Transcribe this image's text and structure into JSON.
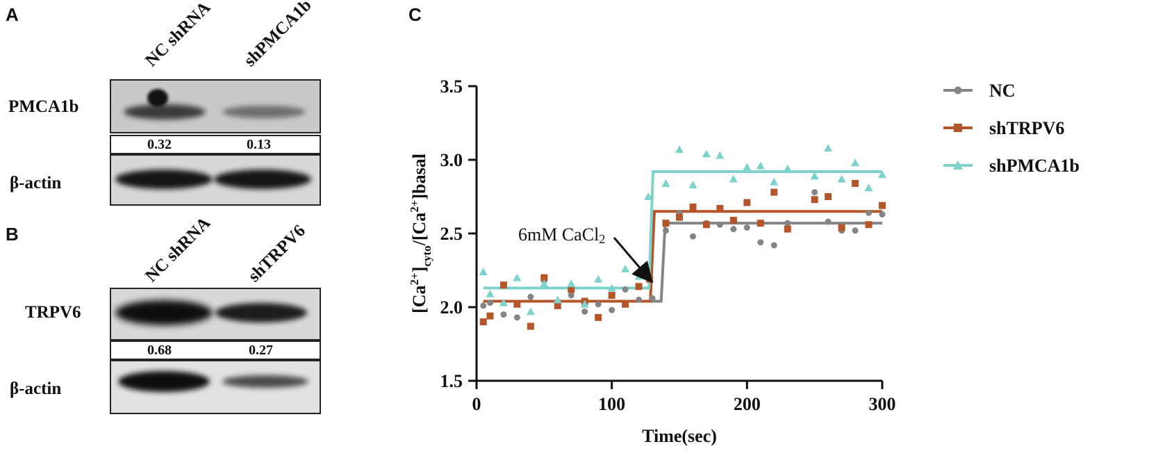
{
  "panels": {
    "a": "A",
    "b": "B",
    "c": "C"
  },
  "blotA": {
    "lanes": [
      "NC shRNA",
      "shPMCA1b"
    ],
    "target_label": "PMCA1b",
    "quant": [
      "0.32",
      "0.13"
    ],
    "loading_label": "β-actin"
  },
  "blotB": {
    "lanes": [
      "NC shRNA",
      "shTRPV6"
    ],
    "target_label": "TRPV6",
    "quant": [
      "0.68",
      "0.27"
    ],
    "loading_label": "β-actin"
  },
  "chart_data": {
    "type": "scatter",
    "title": "",
    "xlabel": "Time(sec)",
    "ylabel": {
      "parts": [
        "[Ca",
        "2+",
        "]",
        "cyto",
        "/[Ca",
        "2+",
        "]basal"
      ]
    },
    "xlim": [
      0,
      300
    ],
    "ylim": [
      1.5,
      3.5
    ],
    "xticks": [
      0,
      100,
      200,
      300
    ],
    "yticks": [
      1.5,
      2.0,
      2.5,
      3.0,
      3.5
    ],
    "xtick_labels": [
      "0",
      "100",
      "200",
      "300"
    ],
    "ytick_labels": [
      "1.5",
      "2.0",
      "2.5",
      "3.0",
      "3.5"
    ],
    "annotation": {
      "text": "6mM CaCl",
      "subscript": "2",
      "x": 130,
      "y": 2.17
    },
    "legend_position": "top-right",
    "series": [
      {
        "name": "NC",
        "color": "#858585",
        "marker": "circle",
        "fit": {
          "low": 2.04,
          "high": 2.57,
          "x_step": 138
        },
        "points": [
          [
            5,
            2.01
          ],
          [
            10,
            2.03
          ],
          [
            20,
            1.95
          ],
          [
            30,
            1.93
          ],
          [
            40,
            2.07
          ],
          [
            50,
            2.18
          ],
          [
            60,
            2.02
          ],
          [
            70,
            2.08
          ],
          [
            80,
            1.97
          ],
          [
            90,
            2.02
          ],
          [
            100,
            1.98
          ],
          [
            110,
            2.12
          ],
          [
            120,
            2.05
          ],
          [
            130,
            2.06
          ],
          [
            140,
            2.52
          ],
          [
            150,
            2.64
          ],
          [
            160,
            2.48
          ],
          [
            170,
            2.57
          ],
          [
            180,
            2.56
          ],
          [
            190,
            2.53
          ],
          [
            200,
            2.54
          ],
          [
            210,
            2.44
          ],
          [
            220,
            2.42
          ],
          [
            230,
            2.57
          ],
          [
            250,
            2.78
          ],
          [
            260,
            2.58
          ],
          [
            270,
            2.52
          ],
          [
            280,
            2.52
          ],
          [
            290,
            2.64
          ],
          [
            300,
            2.63
          ]
        ]
      },
      {
        "name": "shTRPV6",
        "color": "#b5562a",
        "marker": "square",
        "fit": {
          "low": 2.04,
          "high": 2.65,
          "x_step": 130
        },
        "points": [
          [
            5,
            1.9
          ],
          [
            10,
            1.94
          ],
          [
            20,
            2.15
          ],
          [
            30,
            2.02
          ],
          [
            40,
            1.87
          ],
          [
            50,
            2.2
          ],
          [
            60,
            2.01
          ],
          [
            70,
            2.12
          ],
          [
            80,
            2.04
          ],
          [
            90,
            1.93
          ],
          [
            100,
            2.08
          ],
          [
            110,
            2.02
          ],
          [
            120,
            2.14
          ],
          [
            128,
            2.19
          ],
          [
            140,
            2.57
          ],
          [
            150,
            2.61
          ],
          [
            160,
            2.68
          ],
          [
            170,
            2.56
          ],
          [
            180,
            2.67
          ],
          [
            190,
            2.59
          ],
          [
            200,
            2.71
          ],
          [
            210,
            2.57
          ],
          [
            220,
            2.78
          ],
          [
            230,
            2.53
          ],
          [
            250,
            2.73
          ],
          [
            260,
            2.75
          ],
          [
            270,
            2.54
          ],
          [
            280,
            2.84
          ],
          [
            290,
            2.56
          ],
          [
            300,
            2.69
          ]
        ]
      },
      {
        "name": "shPMCA1b",
        "color": "#7dd3cc",
        "marker": "triangle",
        "fit": {
          "low": 2.13,
          "high": 2.92,
          "x_step": 129
        },
        "points": [
          [
            5,
            2.24
          ],
          [
            10,
            2.09
          ],
          [
            20,
            2.03
          ],
          [
            30,
            2.2
          ],
          [
            40,
            1.97
          ],
          [
            50,
            2.16
          ],
          [
            60,
            2.05
          ],
          [
            70,
            2.16
          ],
          [
            80,
            2.02
          ],
          [
            90,
            2.19
          ],
          [
            100,
            2.13
          ],
          [
            110,
            2.26
          ],
          [
            120,
            2.21
          ],
          [
            127,
            2.75
          ],
          [
            140,
            2.84
          ],
          [
            150,
            3.07
          ],
          [
            160,
            2.83
          ],
          [
            170,
            3.04
          ],
          [
            180,
            3.03
          ],
          [
            190,
            2.87
          ],
          [
            200,
            2.95
          ],
          [
            210,
            2.96
          ],
          [
            220,
            2.85
          ],
          [
            230,
            2.94
          ],
          [
            250,
            2.89
          ],
          [
            260,
            3.08
          ],
          [
            270,
            2.87
          ],
          [
            280,
            2.98
          ],
          [
            290,
            2.81
          ],
          [
            300,
            2.9
          ]
        ]
      }
    ]
  }
}
